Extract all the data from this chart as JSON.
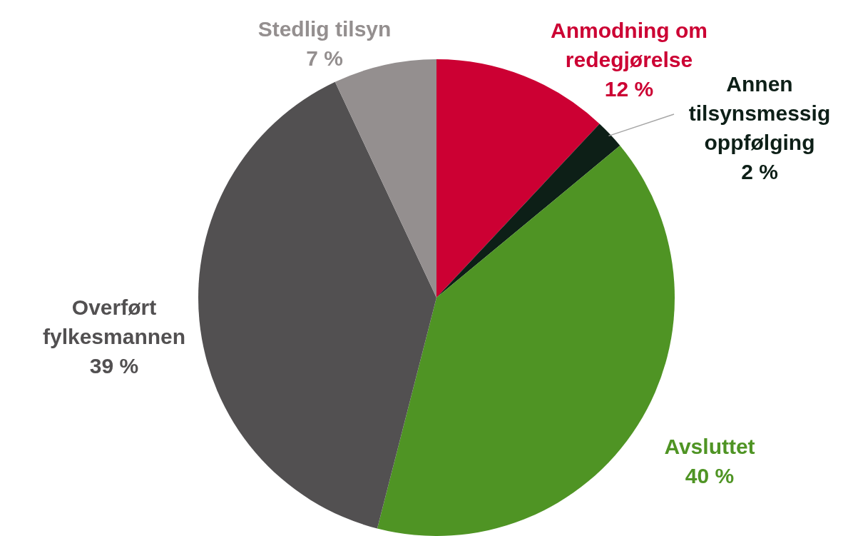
{
  "chart_data": {
    "type": "pie",
    "categories": [
      "Anmodning om redegjørelse",
      "Annen tilsynsmessig oppfølging",
      "Avsluttet",
      "Overført fylkesmannen",
      "Stedlig tilsyn"
    ],
    "values": [
      12,
      2,
      40,
      39,
      7
    ],
    "colors": [
      "#cc0033",
      "#0d1f17",
      "#4f9424",
      "#525051",
      "#948f8f"
    ],
    "value_labels": [
      "12 %",
      "2 %",
      "40 %",
      "39 %",
      "7 %"
    ],
    "legend": false
  }
}
